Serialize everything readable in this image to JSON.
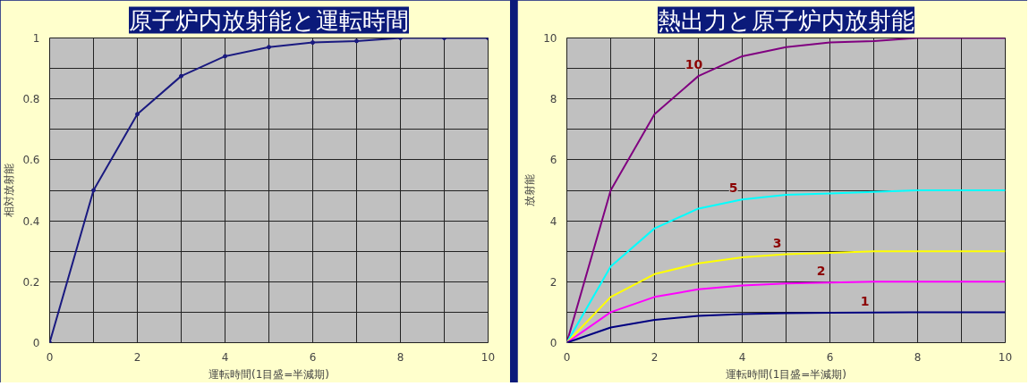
{
  "chart_data": [
    {
      "type": "line",
      "title": "原子炉内放射能と運転時間",
      "xlabel": "運転時間(1目盛=半減期)",
      "ylabel": "相対放射能",
      "marker": "circle",
      "grid": true,
      "x": [
        0,
        1,
        2,
        3,
        4,
        5,
        6,
        7,
        8,
        9,
        10
      ],
      "series": [
        {
          "color": "#1a1a80",
          "values": [
            0,
            0.5,
            0.75,
            0.875,
            0.94,
            0.97,
            0.985,
            0.99,
            1,
            1,
            1
          ]
        }
      ],
      "xlim": [
        0,
        10
      ],
      "ylim": [
        0,
        1
      ],
      "xticks": [
        0,
        {
          "value": 1,
          "label": null
        },
        2,
        {
          "value": 3,
          "label": null
        },
        4,
        {
          "value": 5,
          "label": null
        },
        6,
        {
          "value": 7,
          "label": null
        },
        8,
        {
          "value": 9,
          "label": null
        },
        10
      ],
      "yticks": [
        0,
        {
          "value": 0.1,
          "label": null
        },
        0.2,
        {
          "value": 0.3,
          "label": null
        },
        0.4,
        {
          "value": 0.5,
          "label": null
        },
        0.6,
        {
          "value": 0.7,
          "label": null
        },
        0.8,
        {
          "value": 0.9,
          "label": null
        },
        1
      ]
    },
    {
      "type": "line",
      "title": "熱出力と原子炉内放射能",
      "xlabel": "運転時間(1目盛=半減期)",
      "ylabel": "放射能",
      "grid": true,
      "x": [
        0,
        1,
        2,
        3,
        4,
        5,
        6,
        7,
        8,
        9,
        10
      ],
      "series": [
        {
          "name": "10",
          "color": "#800080",
          "values": [
            0,
            5,
            7.5,
            8.75,
            9.4,
            9.7,
            9.85,
            9.9,
            10,
            10,
            10
          ]
        },
        {
          "name": "5",
          "color": "#00ffff",
          "values": [
            0,
            2.5,
            3.75,
            4.4,
            4.7,
            4.85,
            4.9,
            4.95,
            5,
            5,
            5
          ]
        },
        {
          "name": "3",
          "color": "#ffff00",
          "values": [
            0,
            1.5,
            2.25,
            2.6,
            2.8,
            2.9,
            2.95,
            3,
            3,
            3,
            3
          ]
        },
        {
          "name": "2",
          "color": "#ff00ff",
          "values": [
            0,
            1,
            1.5,
            1.75,
            1.88,
            1.94,
            1.97,
            2,
            2,
            2,
            2
          ]
        },
        {
          "name": "1",
          "color": "#000080",
          "values": [
            0,
            0.5,
            0.75,
            0.88,
            0.94,
            0.97,
            0.98,
            0.99,
            1,
            1,
            1
          ]
        }
      ],
      "xlim": [
        0,
        10
      ],
      "ylim": [
        0,
        10
      ],
      "xticks": [
        0,
        {
          "value": 1,
          "label": null
        },
        2,
        {
          "value": 3,
          "label": null
        },
        4,
        {
          "value": 5,
          "label": null
        },
        6,
        {
          "value": 7,
          "label": null
        },
        8,
        {
          "value": 9,
          "label": null
        },
        10
      ],
      "yticks": [
        0,
        {
          "value": 1,
          "label": null
        },
        2,
        {
          "value": 3,
          "label": null
        },
        4,
        {
          "value": 5,
          "label": null
        },
        6,
        {
          "value": 7,
          "label": null
        },
        8,
        {
          "value": 9,
          "label": null
        },
        10
      ]
    }
  ]
}
